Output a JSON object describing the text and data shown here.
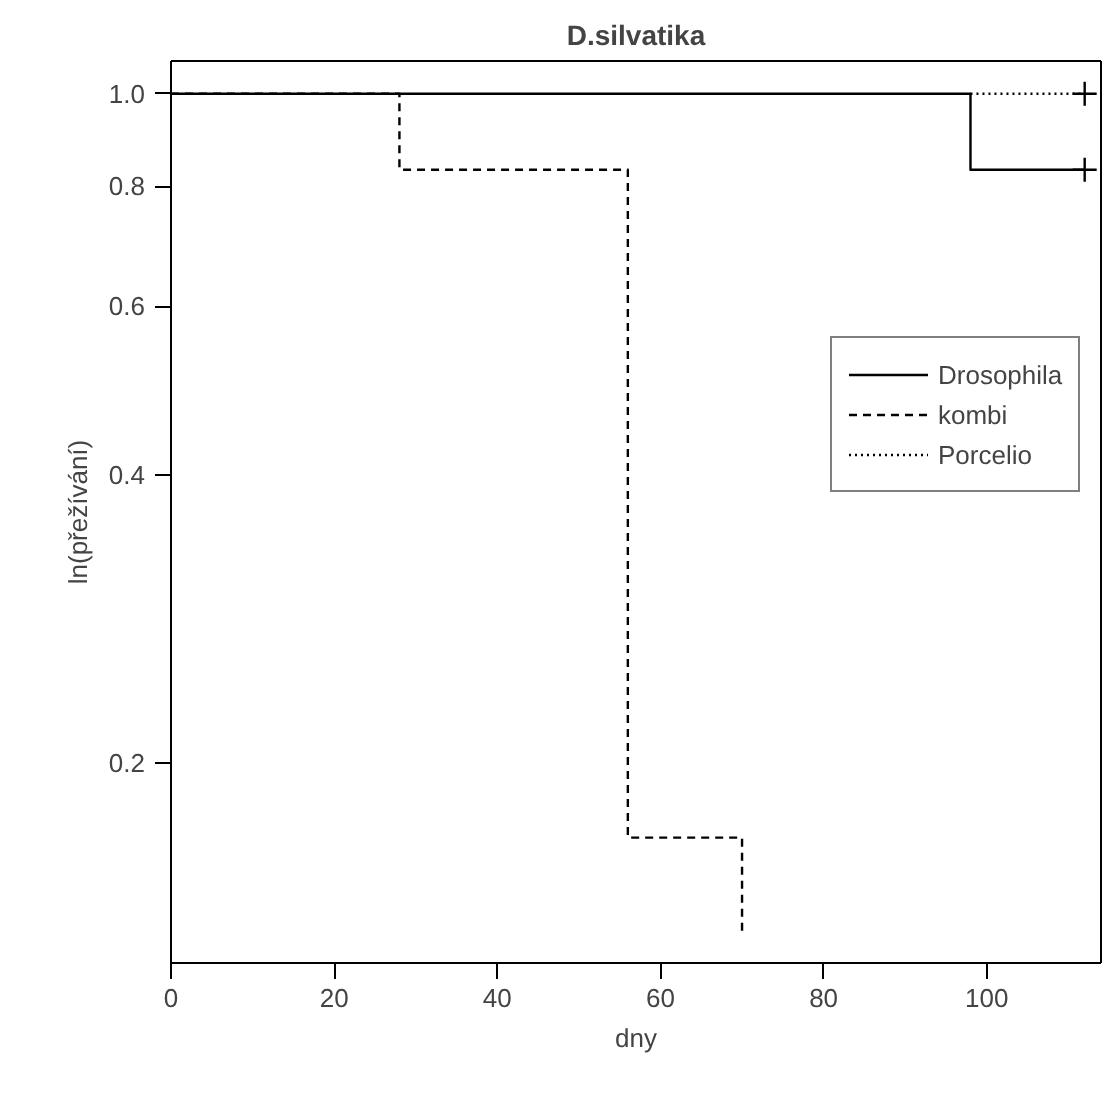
{
  "chart_data": {
    "type": "step",
    "title": "D.silvatika",
    "xlabel": "dny",
    "ylabel": "ln(přežívání)",
    "log": "y",
    "xlim": [
      0,
      114
    ],
    "ylim": [
      0.1235,
      1.082
    ],
    "xticks": [
      0,
      20,
      40,
      60,
      80,
      100
    ],
    "yticks": [
      0.2,
      0.4,
      0.6,
      0.8,
      {
        "value": 1,
        "label": "1.0"
      }
    ],
    "grid": false,
    "legend": "right",
    "series": [
      {
        "name": "Drosophila",
        "color": "#000000",
        "line_style": "solid",
        "x": [
          0,
          98,
          112
        ],
        "values": [
          1.0,
          0.833,
          0.833
        ]
      },
      {
        "name": "kombi",
        "color": "#000000",
        "line_style": "dashed",
        "x": [
          0,
          28,
          56,
          70
        ],
        "values": [
          1.0,
          0.833,
          0.167,
          0.133
        ]
      },
      {
        "name": "Porcelio",
        "color": "#000000",
        "line_style": "dotted",
        "x": [
          98,
          112
        ],
        "values": [
          1.0,
          1.0
        ]
      },
      {
        "type": "scatter",
        "color": "#000000",
        "marker": "cross",
        "x": [
          112,
          112
        ],
        "values": [
          0.833,
          1.0
        ]
      }
    ]
  }
}
